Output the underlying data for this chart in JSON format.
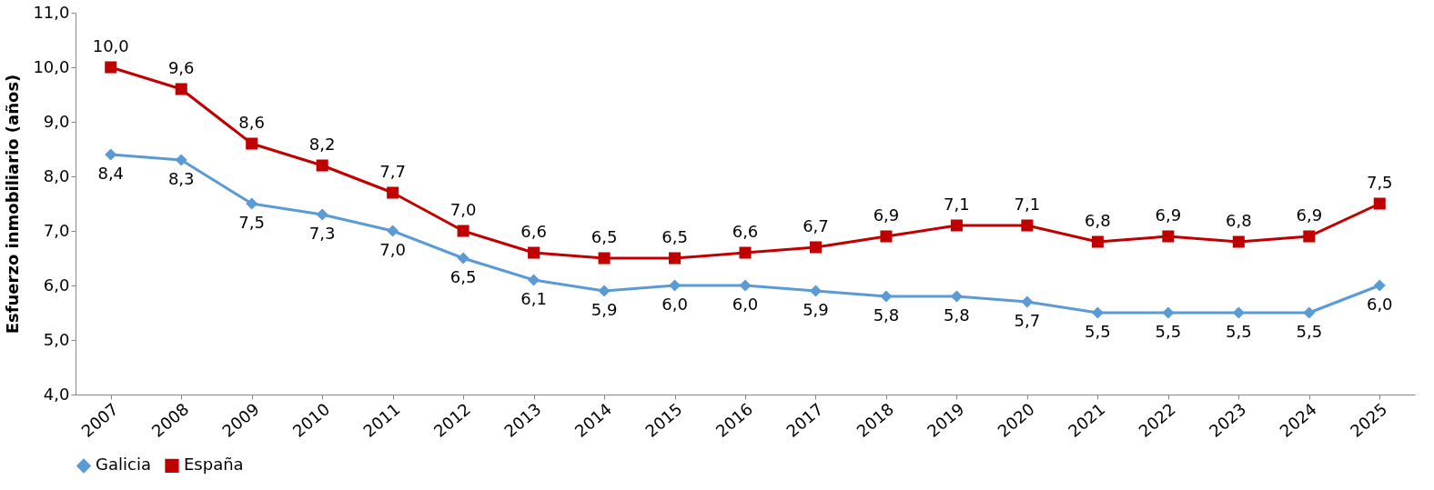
{
  "chart_data": {
    "type": "line",
    "ylabel": "Esfuerzo inmobiliario (años)",
    "categories": [
      "2007",
      "2008",
      "2009",
      "2010",
      "2011",
      "2012",
      "2013",
      "2014",
      "2015",
      "2016",
      "2017",
      "2018",
      "2019",
      "2020",
      "2021",
      "2022",
      "2023",
      "2024",
      "2025"
    ],
    "series": [
      {
        "name": "Galicia",
        "color": "#5b9bd5",
        "marker": "diamond",
        "values": [
          8.4,
          8.3,
          7.5,
          7.3,
          7.0,
          6.5,
          6.1,
          5.9,
          6.0,
          6.0,
          5.9,
          5.8,
          5.8,
          5.7,
          5.5,
          5.5,
          5.5,
          5.5,
          6.0
        ],
        "value_labels": [
          "8,4",
          "8,3",
          "7,5",
          "7,3",
          "7,0",
          "6,5",
          "6,1",
          "5,9",
          "6,0",
          "6,0",
          "5,9",
          "5,8",
          "5,8",
          "5,7",
          "5,5",
          "5,5",
          "5,5",
          "5,5",
          "6,0"
        ]
      },
      {
        "name": "España",
        "color": "#c00000",
        "marker": "square",
        "values": [
          10.0,
          9.6,
          8.6,
          8.2,
          7.7,
          7.0,
          6.6,
          6.5,
          6.5,
          6.6,
          6.7,
          6.9,
          7.1,
          7.1,
          6.8,
          6.9,
          6.8,
          6.9,
          7.5
        ],
        "value_labels": [
          "10,0",
          "9,6",
          "8,6",
          "8,2",
          "7,7",
          "7,0",
          "6,6",
          "6,5",
          "6,5",
          "6,6",
          "6,7",
          "6,9",
          "7,1",
          "7,1",
          "6,8",
          "6,9",
          "6,8",
          "6,9",
          "7,5"
        ]
      }
    ],
    "ylim": [
      4,
      11
    ],
    "yticks": [
      {
        "value": 4,
        "label": "4,0"
      },
      {
        "value": 5,
        "label": "5,0"
      },
      {
        "value": 6,
        "label": "6,0"
      },
      {
        "value": 7,
        "label": "7,0"
      },
      {
        "value": 8,
        "label": "8,0"
      },
      {
        "value": 9,
        "label": "9,0"
      },
      {
        "value": 10,
        "label": "10,0"
      },
      {
        "value": 11,
        "label": "11,0"
      }
    ],
    "grid": false,
    "legend": "bottom",
    "line_style": "solid"
  }
}
